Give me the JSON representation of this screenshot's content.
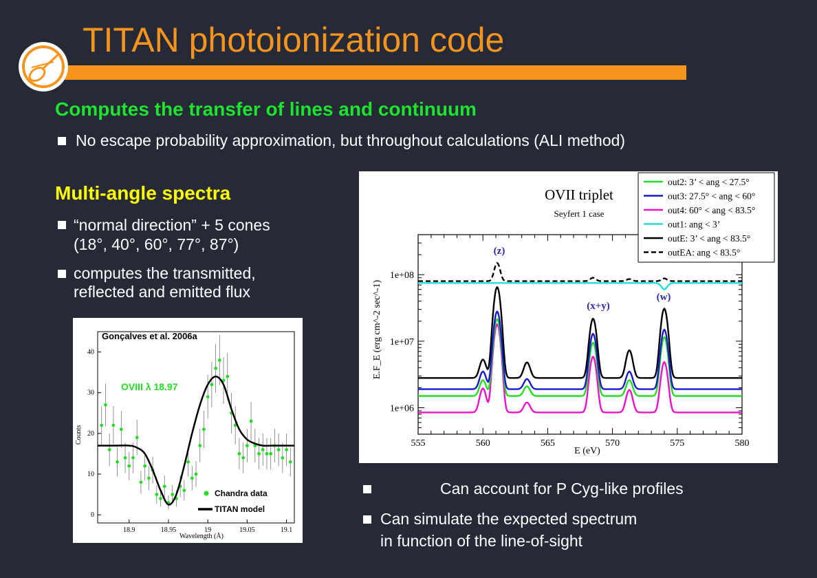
{
  "header": {
    "title": "TITAN photoionization code"
  },
  "section1": {
    "heading": "Computes the transfer of lines and continuum",
    "bullet": "No escape probability approximation, but throughout calculations (ALI method)"
  },
  "section2": {
    "heading": "Multi-angle spectra",
    "bullet1_line1": "“normal direction” + 5 cones",
    "bullet1_line2": "(18°,  40°,  60°,  77°,  87°)",
    "bullet2_line1": "computes the transmitted,",
    "bullet2_line2": "reflected and emitted flux"
  },
  "section3": {
    "bullet1": "Can account for P Cyg-like profiles",
    "bullet2_line1": "Can simulate the expected spectrum",
    "bullet2_line2": "in function of the line-of-sight"
  },
  "colors": {
    "orange": "#f7941e",
    "green": "#1ee32f",
    "yellow": "#ffff00",
    "background": "#262a37"
  },
  "chart_data": [
    {
      "type": "scatter",
      "annotation": "Gonçalves et al. 2006a",
      "line_label": "OVIII λ 18.97",
      "xlabel": "Wavelength (Å)",
      "ylabel": "Counts",
      "xlim": [
        18.86,
        19.11
      ],
      "ylim": [
        -2,
        45
      ],
      "xticks": [
        "18.9",
        "18.95",
        "19",
        "19.05",
        "19.1"
      ],
      "yticks": [
        "0",
        "10",
        "20",
        "30",
        "40"
      ],
      "legend": [
        "Chandra data",
        "TITAN model"
      ],
      "series": [
        {
          "name": "Chandra data",
          "x": [
            18.865,
            18.87,
            18.875,
            18.88,
            18.885,
            18.89,
            18.895,
            18.9,
            18.905,
            18.91,
            18.915,
            18.92,
            18.925,
            18.93,
            18.935,
            18.94,
            18.945,
            18.95,
            18.955,
            18.96,
            18.965,
            18.97,
            18.975,
            18.98,
            18.985,
            18.99,
            18.995,
            19.0,
            19.005,
            19.01,
            19.015,
            19.02,
            19.025,
            19.03,
            19.035,
            19.04,
            19.045,
            19.05,
            19.055,
            19.06,
            19.065,
            19.07,
            19.075,
            19.08,
            19.085,
            19.09,
            19.095,
            19.1,
            19.105
          ],
          "y": [
            22,
            27,
            16,
            22,
            13,
            21,
            14,
            12,
            14,
            19,
            8,
            12,
            9,
            11,
            5,
            4,
            7,
            3,
            5,
            4,
            7,
            6,
            13,
            9,
            10,
            17,
            21,
            29,
            32,
            36,
            38,
            33,
            34,
            25,
            22,
            15,
            14,
            17,
            23,
            17,
            15,
            16,
            15,
            15,
            17,
            16,
            14,
            16,
            13
          ]
        },
        {
          "name": "TITAN model",
          "x": [
            18.86,
            18.88,
            18.9,
            18.91,
            18.92,
            18.93,
            18.94,
            18.95,
            18.96,
            18.97,
            18.98,
            18.99,
            19.0,
            19.01,
            19.02,
            19.03,
            19.04,
            19.05,
            19.06,
            19.07,
            19.08,
            19.09,
            19.1,
            19.11
          ],
          "y": [
            17,
            17,
            17,
            16.5,
            15,
            11,
            6,
            2.5,
            5,
            12,
            20,
            27,
            32,
            34,
            32,
            26,
            21,
            18.5,
            17.5,
            17,
            17,
            17,
            17,
            17
          ]
        }
      ]
    },
    {
      "type": "line",
      "title": "OVII  triplet",
      "subtitle": "Seyfert 1 case",
      "xlabel": "E (eV)",
      "ylabel": "E.F_E  (erg cm^-2 sec^-1)",
      "xlim": [
        555,
        580
      ],
      "ylim": [
        400000,
        400000000
      ],
      "yscale": "log",
      "xticks": [
        "555",
        "560",
        "565",
        "570",
        "575",
        "580"
      ],
      "yticks": [
        "1e+06",
        "1e+07",
        "1e+08"
      ],
      "annotations": [
        "(z)",
        "(x+y)",
        "(w)"
      ],
      "legend_position": "top-right",
      "lines": {
        "centers": [
          560.0,
          561.1,
          563.4,
          568.5,
          571.3,
          574.0
        ],
        "width": 0.32
      },
      "series": [
        {
          "name": "out2: 3’ < ang < 27.5°",
          "color": "#22dd22",
          "base": 1500000,
          "peaks": [
            1100000,
            20000000,
            600000,
            8000000,
            1100000,
            10000000
          ],
          "dash": ""
        },
        {
          "name": "out3: 27.5° < ang < 60°",
          "color": "#1a1acc",
          "base": 1900000,
          "peaks": [
            1600000,
            26000000,
            800000,
            11000000,
            1600000,
            13000000
          ],
          "dash": ""
        },
        {
          "name": "out4: 60° < ang < 83.5°",
          "color": "#ee11cc",
          "base": 850000,
          "peaks": [
            1100000,
            17000000,
            350000,
            5000000,
            1000000,
            4000000
          ],
          "dash": ""
        },
        {
          "name": "out1: ang < 3’",
          "color": "#22dddd",
          "base": 75000000,
          "peaks": [
            0,
            0,
            0,
            0,
            0,
            -15000000
          ],
          "dash": ""
        },
        {
          "name": "outE: 3’ < ang < 83.5°",
          "color": "#000000",
          "base": 2800000,
          "peaks": [
            2500000,
            62000000,
            2000000,
            19000000,
            4500000,
            28000000
          ],
          "dash": ""
        },
        {
          "name": "outEA: ang < 83.5°",
          "color": "#000000",
          "base": 80000000,
          "peaks": [
            0,
            70000000,
            0,
            10000000,
            6000000,
            8000000
          ],
          "dash": "7,4"
        }
      ]
    }
  ]
}
